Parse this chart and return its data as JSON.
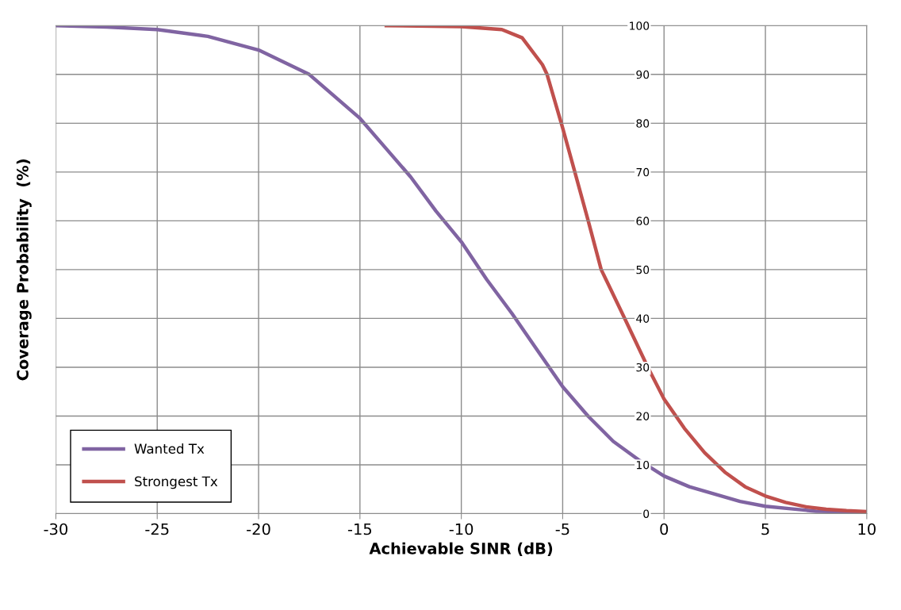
{
  "chart_data": {
    "type": "line",
    "xlabel": "Achievable SINR (dB)",
    "ylabel": "Coverage Probability  (%)",
    "xlim": [
      -30,
      10
    ],
    "xticks": [
      -30,
      -25,
      -20,
      -15,
      -10,
      -5,
      0,
      5,
      10
    ],
    "ylim": [
      0,
      100
    ],
    "yticks": [
      0,
      10,
      20,
      30,
      40,
      50,
      60,
      70,
      80,
      90,
      100
    ],
    "grid": true,
    "legend": "bottom left",
    "marker": "none",
    "line_style": "solid",
    "series": [
      {
        "name": "Wanted Tx",
        "color": "#8064a2",
        "x": [
          -30,
          -27.5,
          -25,
          -22.5,
          -20,
          -17.5,
          -15,
          -13.75,
          -12.5,
          -11.25,
          -10,
          -8.75,
          -7.5,
          -6.25,
          -5,
          -3.75,
          -2.5,
          -1.25,
          0,
          1.25,
          2.5,
          3.75,
          5,
          6.25,
          7.5,
          8.75,
          10
        ],
        "values": [
          100,
          99.7,
          99.2,
          97.8,
          95,
          90,
          81,
          75,
          69,
          62,
          55.7,
          48,
          41,
          33.5,
          26,
          20,
          14.8,
          11,
          7.7,
          5.5,
          4,
          2.5,
          1.5,
          1.0,
          0.5,
          0.4,
          0.2
        ]
      },
      {
        "name": "Strongest Tx",
        "color": "#c0504d",
        "x": [
          -13.7,
          -10,
          -8,
          -7,
          -6,
          -5.77,
          -5,
          -4.4,
          -3.74,
          -3.1,
          -1.94,
          -0.8,
          0,
          1,
          2,
          3,
          4,
          5,
          6,
          7,
          8,
          9,
          10
        ],
        "values": [
          100,
          99.8,
          99.2,
          97.5,
          92,
          90,
          79,
          70,
          60,
          50,
          40,
          30,
          23.5,
          17.5,
          12.5,
          8.5,
          5.5,
          3.6,
          2.3,
          1.4,
          0.9,
          0.6,
          0.4
        ]
      }
    ]
  }
}
